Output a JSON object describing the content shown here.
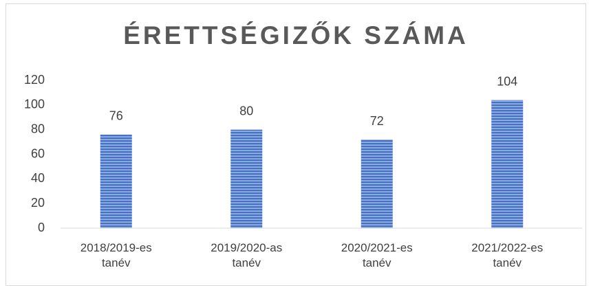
{
  "chart_data": {
    "type": "bar",
    "title": "ÉRETTSÉGIZŐK SZÁMA",
    "categories": [
      "2018/2019-es tanév",
      "2019/2020-as tanév",
      "2020/2021-es tanév",
      "2021/2022-es tanév"
    ],
    "values": [
      76,
      80,
      72,
      104
    ],
    "color": "#4472c4",
    "ylim": [
      0,
      120
    ],
    "yticks": [
      0,
      20,
      40,
      60,
      80,
      100,
      120
    ],
    "grid": false
  }
}
